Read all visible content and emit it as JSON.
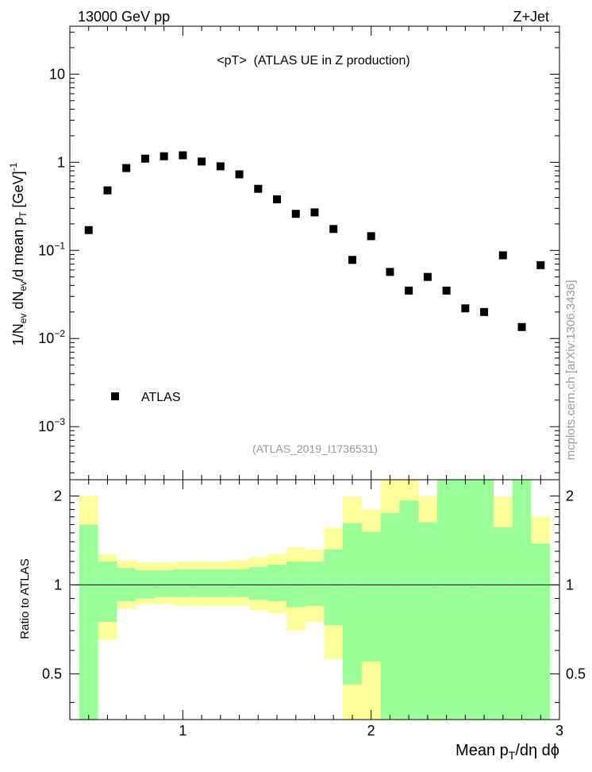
{
  "header": {
    "left": "13000 GeV pp",
    "right": "Z+Jet"
  },
  "side_label": "mcplots.cern.ch [arXiv:1306.3436]",
  "chart_data": [
    {
      "type": "scatter",
      "title": "<pT>  (ATLAS UE in Z production)",
      "ylabel": "1/N_ev dN_ev/d mean p_T [GeV]^-1",
      "yscale": "log",
      "xlim": [
        0.4,
        3.0
      ],
      "ylim": [
        0.00025,
        35
      ],
      "y_ticks": [
        {
          "value": 0.001,
          "base": "10",
          "exp": "−3"
        },
        {
          "value": 0.01,
          "base": "10",
          "exp": "−2"
        },
        {
          "value": 0.1,
          "base": "10",
          "exp": "−1"
        },
        {
          "value": 1,
          "base": "1",
          "exp": ""
        },
        {
          "value": 10,
          "base": "10",
          "exp": ""
        }
      ],
      "legend": {
        "entry": "ATLAS",
        "placement": "bottom-left"
      },
      "annotation": "(ATLAS_2019_I1736531)",
      "series": [
        {
          "name": "ATLAS",
          "x": [
            0.5,
            0.6,
            0.7,
            0.8,
            0.9,
            1.0,
            1.1,
            1.2,
            1.3,
            1.4,
            1.5,
            1.6,
            1.7,
            1.8,
            1.9,
            2.0,
            2.1,
            2.2,
            2.3,
            2.4,
            2.5,
            2.6,
            2.7,
            2.8,
            2.9
          ],
          "y": [
            0.17,
            0.48,
            0.86,
            1.1,
            1.17,
            1.2,
            1.02,
            0.9,
            0.73,
            0.5,
            0.38,
            0.26,
            0.27,
            0.175,
            0.078,
            0.145,
            0.057,
            0.035,
            0.05,
            0.035,
            0.022,
            0.02,
            0.088,
            0.0135,
            0.068
          ]
        }
      ]
    },
    {
      "type": "area",
      "ylabel": "Ratio to ATLAS",
      "xlabel": "Mean p_T/dη dϕ",
      "xlim": [
        0.4,
        3.0
      ],
      "ylim": [
        0.35,
        2.27
      ],
      "x_tick_labels": [
        "1",
        "2",
        "3"
      ],
      "y_tick_labels": [
        "0.5",
        "1",
        "2"
      ],
      "reference_line": 1,
      "bin_edges": [
        0.45,
        0.55,
        0.65,
        0.75,
        0.85,
        0.95,
        1.05,
        1.15,
        1.25,
        1.35,
        1.45,
        1.55,
        1.65,
        1.75,
        1.85,
        1.95,
        2.05,
        2.15,
        2.25,
        2.35,
        2.45,
        2.55,
        2.65,
        2.75,
        2.85,
        2.95
      ],
      "band_outer": {
        "color": "#ffff99",
        "low": [
          0.2,
          0.65,
          0.83,
          0.86,
          0.86,
          0.85,
          0.85,
          0.85,
          0.85,
          0.82,
          0.8,
          0.7,
          0.75,
          0.56,
          0.2,
          0.2,
          0.2,
          0.2,
          0.44,
          0.2,
          0.2,
          0.2,
          0.53,
          0.2,
          0.7
        ],
        "high": [
          2.0,
          1.27,
          1.21,
          1.19,
          1.19,
          1.2,
          1.2,
          1.2,
          1.21,
          1.24,
          1.27,
          1.34,
          1.32,
          1.56,
          1.99,
          1.8,
          2.3,
          2.3,
          2.0,
          2.3,
          2.3,
          2.3,
          1.99,
          2.3,
          1.7
        ]
      },
      "band_inner": {
        "color": "#99ff99",
        "low": [
          0.2,
          0.75,
          0.88,
          0.9,
          0.91,
          0.91,
          0.91,
          0.91,
          0.91,
          0.89,
          0.88,
          0.84,
          0.85,
          0.73,
          0.46,
          0.55,
          0.2,
          0.2,
          0.2,
          0.2,
          0.2,
          0.2,
          0.2,
          0.2,
          0.2
        ],
        "high": [
          1.6,
          1.2,
          1.14,
          1.12,
          1.12,
          1.13,
          1.13,
          1.13,
          1.13,
          1.15,
          1.17,
          1.2,
          1.2,
          1.32,
          1.62,
          1.51,
          1.75,
          1.93,
          1.63,
          2.3,
          2.3,
          2.3,
          1.57,
          2.3,
          1.38
        ]
      }
    }
  ]
}
